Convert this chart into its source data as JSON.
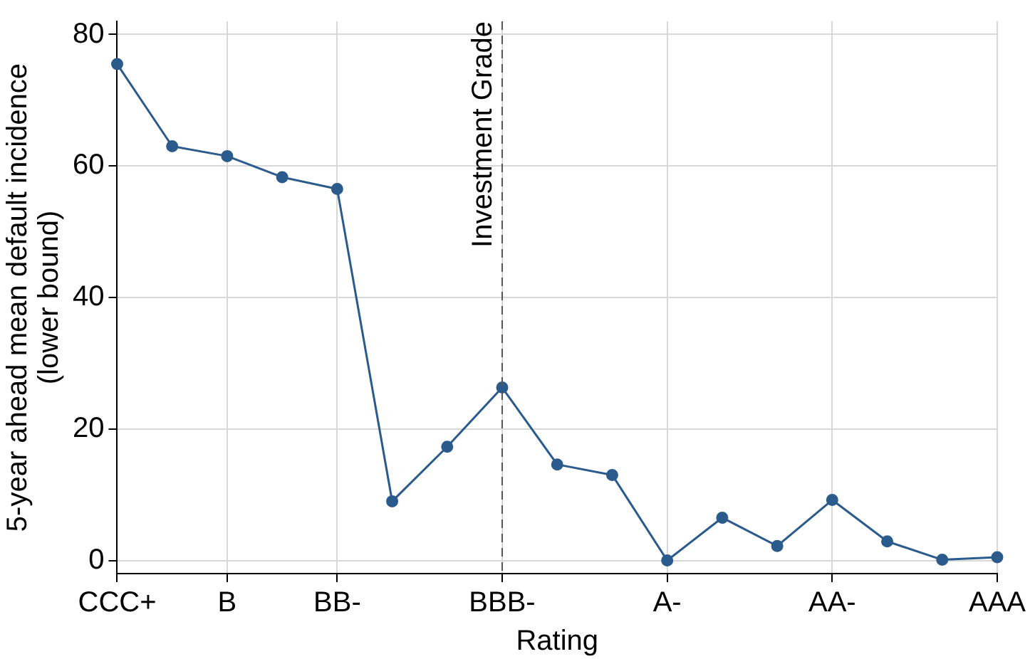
{
  "chart_data": {
    "type": "line",
    "xlabel": "Rating",
    "ylabel": "5-year ahead mean default incidence\n(lower bound)",
    "categories": [
      "CCC+",
      null,
      "B",
      null,
      "BB-",
      null,
      null,
      "BBB-",
      null,
      null,
      "A-",
      null,
      null,
      "AA-",
      null,
      null,
      "AAA"
    ],
    "series": [
      {
        "color": "#2a5b8c",
        "values": [
          75.5,
          63,
          61.5,
          58.3,
          56.5,
          9,
          17.3,
          26.3,
          14.6,
          13,
          0,
          6.5,
          2.2,
          9.2,
          2.9,
          0.1,
          0.5
        ]
      }
    ],
    "ylim": [
      -2,
      82
    ],
    "yticks": [
      0,
      20,
      40,
      60,
      80
    ],
    "grid": true,
    "marker": "circle",
    "line_style": "solid",
    "legend": false,
    "ref_lines": [
      {
        "axis": "x",
        "value": "BBB-",
        "label": "Investment Grade",
        "color": "#555555",
        "line_style": "dashed"
      }
    ]
  }
}
